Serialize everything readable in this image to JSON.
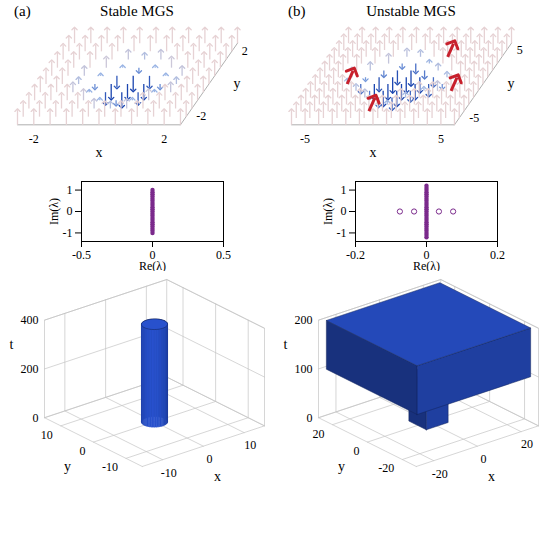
{
  "chart_data": [
    {
      "type": "panel",
      "panel_label": "(a)",
      "title": "Stable MGS",
      "charts": [
        {
          "type": "vector_field",
          "xlabel": "x",
          "ylabel": "y",
          "xlim": [
            -2.5,
            2.5
          ],
          "ylim": [
            -2.5,
            2.5
          ],
          "xticks": [
            -2,
            2
          ],
          "yticks": [
            -2,
            2
          ],
          "x": [
            -2.5,
            -2,
            -1.5,
            -1,
            -0.5,
            0,
            0.5,
            1,
            1.5,
            2,
            2.5
          ],
          "y": [
            -2.5,
            -2,
            -1.5,
            -1,
            -0.5,
            0,
            0.5,
            1,
            1.5,
            2,
            2.5
          ],
          "mz": [
            [
              1,
              1,
              1,
              1,
              1,
              1,
              1,
              1,
              1,
              1,
              1
            ],
            [
              1,
              1,
              1,
              1,
              1,
              1,
              1,
              1,
              1,
              1,
              1
            ],
            [
              1,
              1,
              1,
              1,
              0.6,
              0.4,
              0.6,
              1,
              1,
              1,
              1
            ],
            [
              1,
              1,
              1,
              0.7,
              0.1,
              -0.3,
              0.1,
              0.7,
              1,
              1,
              1
            ],
            [
              1,
              1,
              0.6,
              0.1,
              -0.8,
              -1,
              -0.8,
              0.1,
              0.6,
              1,
              1
            ],
            [
              1,
              1,
              0.4,
              -0.3,
              -1,
              -1,
              -1,
              -0.3,
              0.4,
              1,
              1
            ],
            [
              1,
              1,
              0.6,
              0.1,
              -0.8,
              -1,
              -0.8,
              0.1,
              0.6,
              1,
              1
            ],
            [
              1,
              1,
              1,
              0.7,
              0.1,
              -0.3,
              0.1,
              0.7,
              1,
              1,
              1
            ],
            [
              1,
              1,
              1,
              1,
              0.6,
              0.4,
              0.6,
              1,
              1,
              1,
              1
            ],
            [
              1,
              1,
              1,
              1,
              1,
              1,
              1,
              1,
              1,
              1,
              1
            ],
            [
              1,
              1,
              1,
              1,
              1,
              1,
              1,
              1,
              1,
              1,
              1
            ]
          ]
        },
        {
          "type": "scatter",
          "xlabel": "Re(λ)",
          "ylabel": "Im(λ)",
          "xlim": [
            -0.5,
            0.5
          ],
          "ylim": [
            -1.4,
            1.4
          ],
          "xticks": [
            -0.5,
            0,
            0.5
          ],
          "yticks": [
            -1,
            0,
            1
          ],
          "series": [
            {
              "marker": "dot",
              "color": "#7b2a8c",
              "re": [
                0,
                0,
                0,
                0,
                0,
                0,
                0,
                0,
                0,
                0,
                0,
                0,
                0,
                0,
                0,
                0,
                0,
                0,
                0,
                0,
                0
              ],
              "im": [
                -1,
                -0.9,
                -0.8,
                -0.7,
                -0.6,
                -0.5,
                -0.4,
                -0.3,
                -0.2,
                -0.1,
                0,
                0.1,
                0.2,
                0.3,
                0.4,
                0.5,
                0.6,
                0.7,
                0.8,
                0.9,
                1
              ]
            }
          ]
        },
        {
          "type": "evolution_3d",
          "xlabel": "x",
          "ylabel": "y",
          "tlabel": "t",
          "xlim": [
            -15,
            15
          ],
          "ylim": [
            -15,
            15
          ],
          "tlim": [
            0,
            400
          ],
          "xticks": [
            -10,
            0,
            10
          ],
          "yticks": [
            -10,
            0,
            10
          ],
          "tticks": [
            0,
            200,
            400
          ],
          "color": "#1f3fa0",
          "regions": [
            {
              "type": "cylinder",
              "radius": 2.5,
              "t": [
                0,
                400
              ]
            }
          ]
        }
      ]
    },
    {
      "type": "panel",
      "panel_label": "(b)",
      "title": "Unstable MGS",
      "charts": [
        {
          "type": "vector_field",
          "xlabel": "x",
          "ylabel": "y",
          "xlim": [
            -6,
            6
          ],
          "ylim": [
            -6,
            6
          ],
          "xticks": [
            -5,
            5
          ],
          "yticks": [
            -5,
            5
          ],
          "x": [
            -6,
            -5,
            -4,
            -3,
            -2,
            -1,
            0,
            1,
            2,
            3,
            4,
            5,
            6
          ],
          "y": [
            -6,
            -5,
            -4,
            -3,
            -2,
            -1,
            0,
            1,
            2,
            3,
            4,
            5,
            6
          ],
          "mz": [
            [
              1,
              1,
              1,
              1,
              1,
              1,
              1,
              1,
              1,
              1,
              1,
              1,
              1
            ],
            [
              1,
              1,
              1,
              1,
              1,
              1,
              1,
              1,
              1,
              1,
              1,
              1,
              1
            ],
            [
              1,
              1,
              1,
              1,
              1,
              1,
              1,
              1,
              1,
              1,
              1,
              1,
              1
            ],
            [
              1,
              1,
              1,
              1,
              1,
              0.5,
              0.2,
              1,
              1,
              1,
              1,
              1,
              1
            ],
            [
              1,
              1,
              1,
              1,
              0.5,
              -0.6,
              -0.8,
              0.3,
              1,
              1,
              1,
              1,
              1
            ],
            [
              1,
              1,
              1,
              0.4,
              -0.5,
              -1,
              -1,
              -0.7,
              0.2,
              0.6,
              1,
              1,
              1
            ],
            [
              1,
              1,
              0.3,
              -0.6,
              -1,
              -1,
              -1,
              -1,
              -0.8,
              -0.3,
              0.5,
              1,
              1
            ],
            [
              1,
              1,
              0.6,
              -0.2,
              -0.9,
              -1,
              -1,
              -1,
              -0.6,
              0.3,
              1,
              1,
              1
            ],
            [
              1,
              1,
              1,
              0.5,
              -0.4,
              -0.9,
              -1,
              -0.5,
              0.4,
              1,
              1,
              1,
              1
            ],
            [
              1,
              1,
              1,
              1,
              0.6,
              -0.3,
              -0.6,
              0.2,
              1,
              1,
              1,
              1,
              1
            ],
            [
              1,
              1,
              1,
              1,
              1,
              0.5,
              0.4,
              1,
              1,
              1,
              1,
              1,
              1
            ],
            [
              1,
              1,
              1,
              1,
              1,
              1,
              1,
              1,
              1,
              1,
              1,
              1,
              1
            ],
            [
              1,
              1,
              1,
              1,
              1,
              1,
              1,
              1,
              1,
              1,
              1,
              1,
              1
            ]
          ],
          "red_spots": [
            [
              -4,
              0
            ],
            [
              -1,
              -4
            ],
            [
              4,
              -1
            ],
            [
              2,
              4
            ]
          ]
        },
        {
          "type": "scatter",
          "xlabel": "Re(λ)",
          "ylabel": "Im(λ)",
          "xlim": [
            -0.2,
            0.2
          ],
          "ylim": [
            -1.4,
            1.4
          ],
          "xticks": [
            -0.2,
            0,
            0.2
          ],
          "yticks": [
            -1,
            0,
            1
          ],
          "series": [
            {
              "marker": "dot",
              "color": "#7b2a8c",
              "re": [
                0,
                0,
                0,
                0,
                0,
                0,
                0,
                0,
                0,
                0,
                0,
                0,
                0,
                0,
                0,
                0,
                0,
                0,
                0,
                0,
                0,
                0,
                0,
                0,
                0
              ],
              "im": [
                -1.2,
                -1.1,
                -1,
                -0.9,
                -0.8,
                -0.7,
                -0.6,
                -0.5,
                -0.4,
                -0.3,
                -0.2,
                -0.1,
                0,
                0.1,
                0.2,
                0.3,
                0.4,
                0.5,
                0.6,
                0.7,
                0.8,
                0.9,
                1,
                1.1,
                1.2
              ]
            },
            {
              "marker": "circle",
              "color": "#7b2a8c",
              "re": [
                -0.075,
                -0.035,
                0.035,
                0.075
              ],
              "im": [
                0,
                0,
                0,
                0
              ]
            }
          ]
        },
        {
          "type": "evolution_3d",
          "xlabel": "x",
          "ylabel": "y",
          "tlabel": "t",
          "xlim": [
            -28,
            28
          ],
          "ylim": [
            -28,
            28
          ],
          "tlim": [
            0,
            200
          ],
          "xticks": [
            -20,
            0,
            20
          ],
          "yticks": [
            -20,
            0,
            20
          ],
          "tticks": [
            0,
            100,
            200
          ],
          "color": "#1f3fa0",
          "regions": [
            {
              "type": "box",
              "half_width": 5,
              "t": [
                0,
                100
              ]
            },
            {
              "type": "box",
              "half_width": 26,
              "t": [
                100,
                200
              ]
            }
          ]
        }
      ]
    }
  ]
}
